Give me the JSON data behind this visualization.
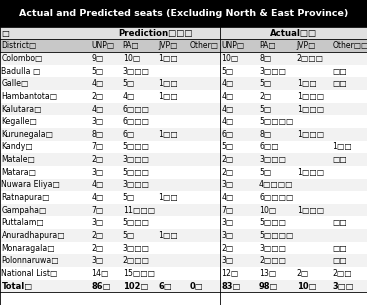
{
  "title": "Actual and Predicted seats (Excluding North & East Province)",
  "header_row1_left": "□",
  "header_row1_pred": "Prediction□□□",
  "header_row1_act": "Actual□□",
  "col_headers": [
    "District□",
    "UNP□",
    "PA□",
    "JVP□",
    "Other□",
    "UNP□",
    "PA□",
    "JVP□",
    "Other□□"
  ],
  "rows": [
    [
      "Colombo□",
      "9□",
      "10□",
      "1□□",
      "",
      "10□",
      "8□",
      "2□□□",
      ""
    ],
    [
      "Badulla □",
      "5□",
      "3□□□",
      "",
      "",
      "5□",
      "3□□□",
      "",
      "□□"
    ],
    [
      "Galle□",
      "4□",
      "5□",
      "1□□",
      "",
      "4□",
      "5□",
      "1□□",
      "□□"
    ],
    [
      "Hambantota□",
      "2□",
      "4□",
      "1□□",
      "",
      "4□",
      "2□",
      "1□□□",
      ""
    ],
    [
      "Kalutara□",
      "4□",
      "6□□□",
      "",
      "",
      "4□",
      "5□",
      "1□□□",
      ""
    ],
    [
      "Kegalle□",
      "3□",
      "6□□□",
      "",
      "",
      "4□",
      "5□□□□",
      "",
      ""
    ],
    [
      "Kurunegala□",
      "8□",
      "6□",
      "1□□",
      "",
      "6□",
      "8□",
      "1□□□",
      ""
    ],
    [
      "Kandy□",
      "7□",
      "5□□□",
      "",
      "",
      "5□",
      "6□□",
      "",
      "1□□"
    ],
    [
      "Matale□",
      "2□",
      "3□□□",
      "",
      "",
      "2□",
      "3□□□",
      "",
      "□□"
    ],
    [
      "Matara□",
      "3□",
      "5□□□",
      "",
      "",
      "2□",
      "5□",
      "1□□□",
      ""
    ],
    [
      "Nuwara Eliya□",
      "4□",
      "3□□□",
      "",
      "",
      "3□",
      "4□□□□",
      "",
      ""
    ],
    [
      "Ratnapura□",
      "4□",
      "5□",
      "1□□",
      "",
      "4□",
      "6□□□□",
      "",
      ""
    ],
    [
      "Gampaha□",
      "7□",
      "11□□□",
      "",
      "",
      "7□",
      "10□",
      "1□□□",
      ""
    ],
    [
      "Puttalam□",
      "3□",
      "5□□□",
      "",
      "",
      "3□",
      "5□□□",
      "",
      "□□"
    ],
    [
      "Anuradhapura□",
      "2□",
      "5□",
      "1□□",
      "",
      "3□",
      "5□□□□",
      "",
      ""
    ],
    [
      "Monaragala□",
      "2□",
      "3□□□",
      "",
      "",
      "2□",
      "3□□□",
      "",
      "□□"
    ],
    [
      "Polonnaruwa□",
      "3□",
      "2□□□",
      "",
      "",
      "3□",
      "2□□□",
      "",
      "□□"
    ],
    [
      "National List□",
      "14□",
      "15□□□",
      "",
      "",
      "12□",
      "13□",
      "2□",
      "2□□"
    ],
    [
      "Total□",
      "86□",
      "102□",
      "6□",
      "0□",
      "83□",
      "98□",
      "10□",
      "3□□"
    ]
  ],
  "title_bg": "#000000",
  "title_fg": "#ffffff",
  "divider_col": 5,
  "bg_color": "#ffffff"
}
